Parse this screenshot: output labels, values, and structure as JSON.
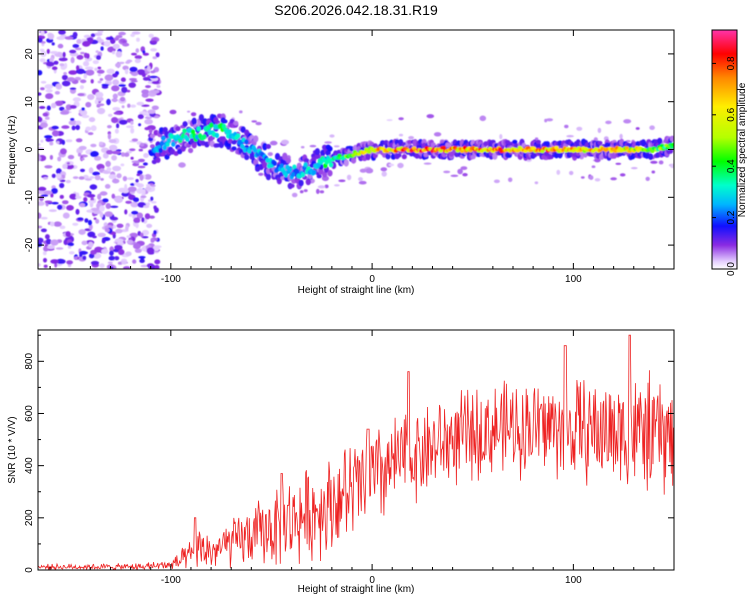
{
  "title": "S206.2026.042.18.31.R19",
  "colors": {
    "snr_line": "#ee2222",
    "axis": "#000000"
  },
  "chart_data": [
    {
      "type": "heatmap",
      "name": "spectrogram",
      "xlabel": "Height of straight line (km)",
      "ylabel": "Frequency (Hz)",
      "xlim": [
        -166,
        150
      ],
      "ylim": [
        -25,
        25
      ],
      "xticks": [
        -100,
        0,
        100
      ],
      "yticks": [
        -20,
        -10,
        0,
        10,
        20
      ],
      "colorbar": {
        "label": "Normalized spectral amplitude",
        "range": [
          0,
          0.93
        ],
        "ticks": [
          "0.0",
          "0.2",
          "0.4",
          "0.6",
          "0.8"
        ],
        "tick_values": [
          0,
          0.2,
          0.4,
          0.6,
          0.8
        ]
      },
      "ridge": {
        "x": [
          -110,
          -100,
          -90,
          -80,
          -75,
          -70,
          -60,
          -50,
          -40,
          -30,
          -20,
          -10,
          0,
          20,
          40,
          60,
          80,
          100,
          120,
          140,
          150
        ],
        "freq": [
          0,
          2,
          3,
          4,
          4,
          3,
          0,
          -3,
          -5,
          -4,
          -2,
          -1,
          0,
          0,
          0,
          0,
          0,
          0,
          0,
          0,
          1
        ],
        "amplitude": [
          0.25,
          0.35,
          0.4,
          0.4,
          0.45,
          0.35,
          0.3,
          0.3,
          0.3,
          0.35,
          0.45,
          0.6,
          0.75,
          0.9,
          0.85,
          0.85,
          0.85,
          0.8,
          0.75,
          0.6,
          0.45
        ]
      }
    },
    {
      "type": "line",
      "name": "snr",
      "xlabel": "Height of straight line (km)",
      "ylabel": "SNR (10 * V/V)",
      "xlim": [
        -166,
        150
      ],
      "ylim": [
        0,
        920
      ],
      "xticks": [
        -100,
        0,
        100
      ],
      "yticks": [
        0,
        200,
        400,
        600,
        800
      ],
      "envelope": {
        "x": [
          -166,
          -120,
          -100,
          -90,
          -85,
          -80,
          -70,
          -60,
          -50,
          -40,
          -30,
          -20,
          -10,
          0,
          10,
          20,
          30,
          40,
          60,
          80,
          100,
          120,
          140,
          150
        ],
        "mean": [
          12,
          12,
          18,
          50,
          80,
          70,
          100,
          130,
          160,
          190,
          220,
          260,
          300,
          340,
          400,
          440,
          470,
          500,
          540,
          550,
          540,
          530,
          520,
          500
        ],
        "spread": [
          10,
          12,
          20,
          60,
          80,
          70,
          90,
          110,
          140,
          160,
          170,
          180,
          190,
          200,
          180,
          170,
          170,
          170,
          170,
          180,
          190,
          200,
          220,
          220
        ],
        "peaks": [
          [
            -88,
            200
          ],
          [
            -45,
            370
          ],
          [
            -2,
            540
          ],
          [
            18,
            760
          ],
          [
            96,
            860
          ],
          [
            128,
            900
          ]
        ]
      }
    }
  ]
}
